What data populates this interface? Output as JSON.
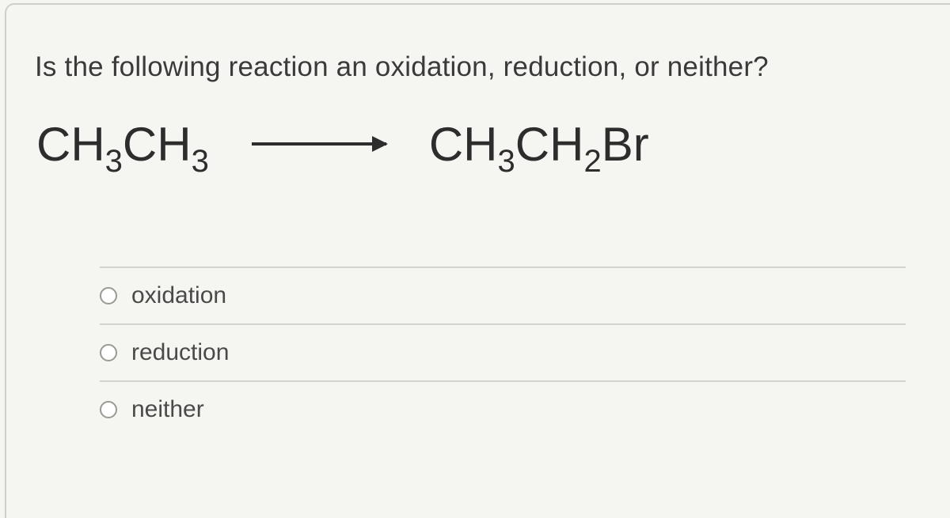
{
  "question": {
    "prompt": "Is the following reaction an oxidation, reduction, or neither?",
    "reactant": {
      "p1": "CH",
      "s1": "3",
      "p2": "CH",
      "s2": "3"
    },
    "product": {
      "p1": "CH",
      "s1": "3",
      "p2": "CH",
      "s2": "2",
      "p3": "Br"
    }
  },
  "options": [
    {
      "id": "oxidation",
      "label": "oxidation"
    },
    {
      "id": "reduction",
      "label": "reduction"
    },
    {
      "id": "neither",
      "label": "neither"
    }
  ]
}
